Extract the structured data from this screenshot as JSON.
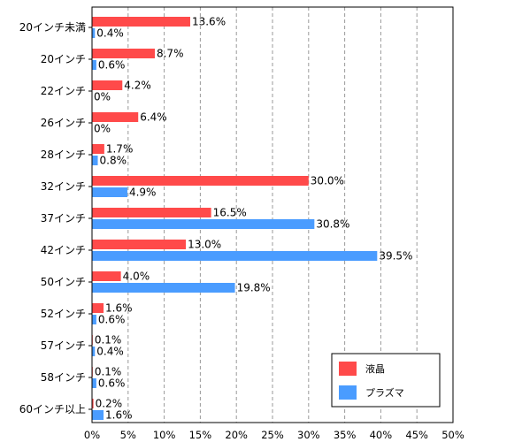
{
  "chart_data": {
    "type": "bar",
    "orientation": "horizontal",
    "categories": [
      "20インチ未満",
      "20インチ",
      "22インチ",
      "26インチ",
      "28インチ",
      "32インチ",
      "37インチ",
      "42インチ",
      "50インチ",
      "52インチ",
      "57インチ",
      "58インチ",
      "60インチ以上"
    ],
    "series": [
      {
        "name": "液晶",
        "color": "#ff4a4a",
        "values": [
          13.6,
          8.7,
          4.2,
          6.4,
          1.7,
          30.0,
          16.5,
          13.0,
          4.0,
          1.6,
          0.1,
          0.1,
          0.2
        ],
        "labels": [
          "13.6%",
          "8.7%",
          "4.2%",
          "6.4%",
          "1.7%",
          "30.0%",
          "16.5%",
          "13.0%",
          "4.0%",
          "1.6%",
          "0.1%",
          "0.1%",
          "0.2%"
        ]
      },
      {
        "name": "プラズマ",
        "color": "#4a9cff",
        "values": [
          0.4,
          0.6,
          0,
          0,
          0.8,
          4.9,
          30.8,
          39.5,
          19.8,
          0.6,
          0.4,
          0.6,
          1.6
        ],
        "labels": [
          "0.4%",
          "0.6%",
          "0%",
          "0%",
          "0.8%",
          "4.9%",
          "30.8%",
          "39.5%",
          "19.8%",
          "0.6%",
          "0.4%",
          "0.6%",
          "1.6%"
        ]
      }
    ],
    "x_ticks": [
      "0%",
      "5%",
      "10%",
      "15%",
      "20%",
      "25%",
      "30%",
      "35%",
      "40%",
      "45%",
      "50%"
    ],
    "xlim": [
      0,
      50
    ],
    "grid": true,
    "legend_position": "bottom-right"
  }
}
